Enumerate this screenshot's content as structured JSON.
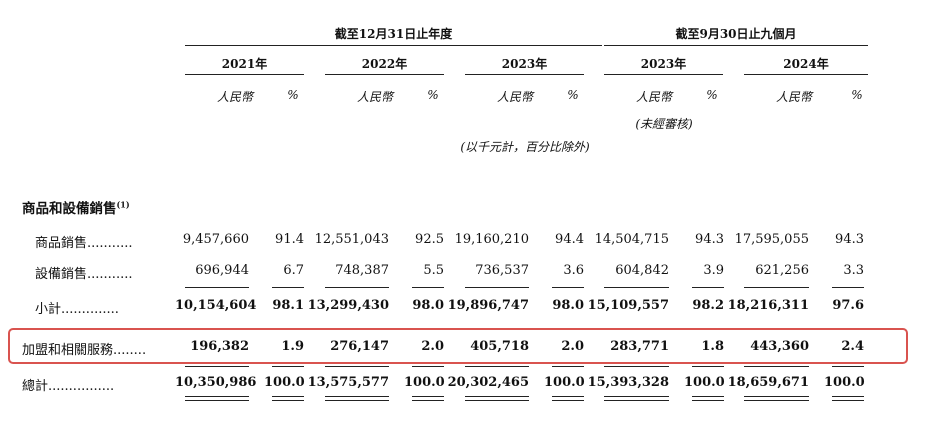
{
  "headers": {
    "group_fy": "截至12月31日止年度",
    "group_9m": "截至9月30日止九個月",
    "years": [
      "2021年",
      "2022年",
      "2023年",
      "2023年",
      "2024年"
    ],
    "rmb": "人民幣",
    "pct": "%",
    "unaudited": "(未經審核)",
    "units_note": "(以千元計，百分比除外)"
  },
  "section_title": "商品和設備銷售",
  "section_note": "(1)",
  "rows": [
    {
      "label": "商品銷售",
      "dots": "...........",
      "values": [
        "9,457,660",
        "91.4",
        "12,551,043",
        "92.5",
        "19,160,210",
        "94.4",
        "14,504,715",
        "94.3",
        "17,595,055",
        "94.3"
      ],
      "bold": false
    },
    {
      "label": "設備銷售",
      "dots": "...........",
      "values": [
        "696,944",
        "6.7",
        "748,387",
        "5.5",
        "736,537",
        "3.6",
        "604,842",
        "3.9",
        "621,256",
        "3.3"
      ],
      "bold": false
    },
    {
      "label": "小計",
      "dots": "..............",
      "values": [
        "10,154,604",
        "98.1",
        "13,299,430",
        "98.0",
        "19,896,747",
        "98.0",
        "15,109,557",
        "98.2",
        "18,216,311",
        "97.6"
      ],
      "bold": true
    },
    {
      "label": "加盟和相關服務",
      "dots": "........",
      "values": [
        "196,382",
        "1.9",
        "276,147",
        "2.0",
        "405,718",
        "2.0",
        "283,771",
        "1.8",
        "443,360",
        "2.4"
      ],
      "bold": true
    },
    {
      "label": "總計",
      "dots": "................",
      "values": [
        "10,350,986",
        "100.0",
        "13,575,577",
        "100.0",
        "20,302,465",
        "100.0",
        "15,393,328",
        "100.0",
        "18,659,671",
        "100.0"
      ],
      "bold": true
    }
  ],
  "highlight_color": "#d9534f"
}
